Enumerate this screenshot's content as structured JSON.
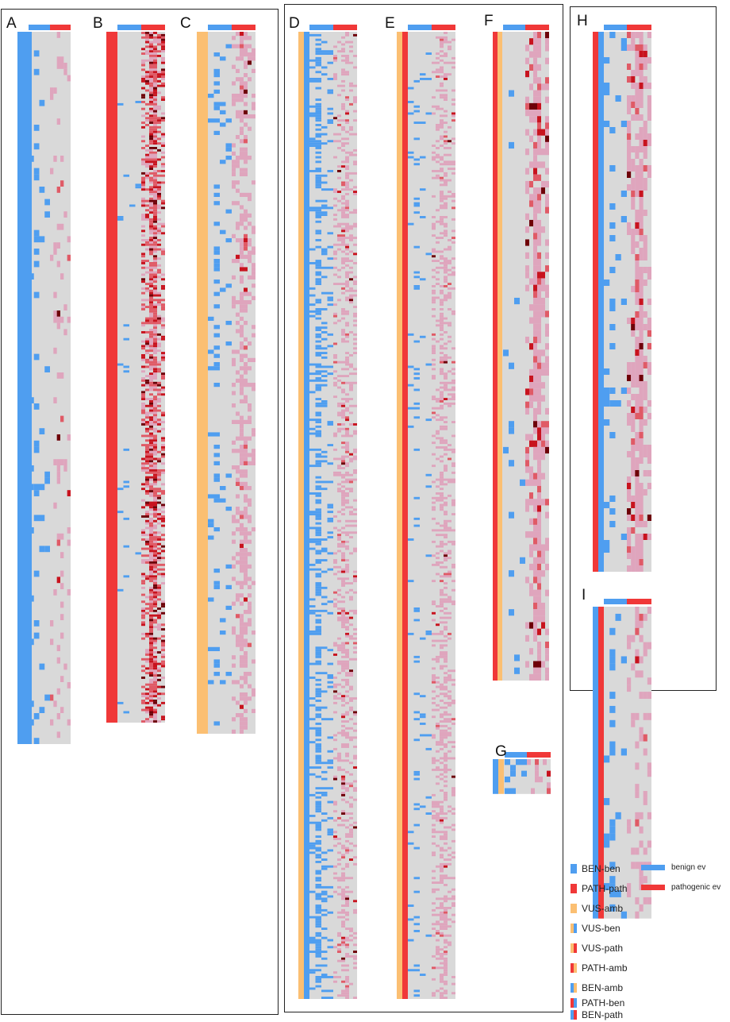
{
  "colors": {
    "benign": "#4f9ef0",
    "pathogenic": "#f03838",
    "vus": "#fbbf72",
    "empty": "#d9d9d9",
    "weak": "#dfa5bd",
    "mid": "#e05a66",
    "strong": "#c8131e",
    "very_strong": "#6e0008"
  },
  "panels": [
    {
      "label": "A",
      "class_colors": [
        "benign",
        "benign"
      ]
    },
    {
      "label": "B",
      "class_colors": [
        "pathogenic",
        "pathogenic"
      ]
    },
    {
      "label": "C",
      "class_colors": [
        "vus",
        "vus"
      ]
    },
    {
      "label": "D",
      "class_colors": [
        "vus",
        "benign"
      ]
    },
    {
      "label": "E",
      "class_colors": [
        "vus",
        "pathogenic"
      ]
    },
    {
      "label": "F",
      "class_colors": [
        "pathogenic",
        "vus"
      ]
    },
    {
      "label": "G",
      "class_colors": [
        "benign",
        "vus"
      ]
    },
    {
      "label": "H",
      "class_colors": [
        "pathogenic",
        "benign"
      ]
    },
    {
      "label": "I",
      "class_colors": [
        "benign",
        "pathogenic"
      ]
    }
  ],
  "legend": {
    "classes": [
      {
        "label": "BEN-ben",
        "colors": [
          "benign",
          "benign"
        ]
      },
      {
        "label": "PATH-path",
        "colors": [
          "pathogenic",
          "pathogenic"
        ]
      },
      {
        "label": "VUS-amb",
        "colors": [
          "vus",
          "vus"
        ]
      },
      {
        "label": "VUS-ben",
        "colors": [
          "vus",
          "benign"
        ]
      },
      {
        "label": "VUS-path",
        "colors": [
          "vus",
          "pathogenic"
        ]
      },
      {
        "label": "PATH-amb",
        "colors": [
          "pathogenic",
          "vus"
        ]
      },
      {
        "label": "BEN-amb",
        "colors": [
          "benign",
          "vus"
        ]
      },
      {
        "label": "PATH-ben",
        "colors": [
          "pathogenic",
          "benign"
        ]
      },
      {
        "label": "BEN-path",
        "colors": [
          "benign",
          "pathogenic"
        ]
      }
    ],
    "evidence": [
      {
        "label": "benign ev",
        "color": "benign"
      },
      {
        "label": "pathogenic ev",
        "color": "pathogenic"
      }
    ]
  }
}
